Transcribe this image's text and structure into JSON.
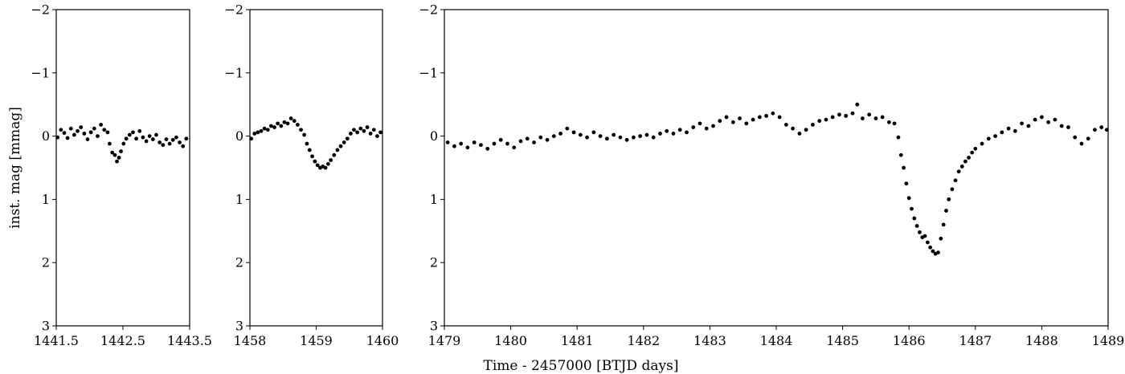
{
  "chart_data": {
    "type": "scatter",
    "ylabel": "inst. mag [mmag]",
    "xlabel": "Time - 2457000 [BTJD days]",
    "y_inverted": true,
    "ylim": [
      3,
      -2
    ],
    "grid": false,
    "legend": "none",
    "marker_color": "#000000",
    "panels": [
      {
        "xlim": [
          1441.5,
          1443.5
        ],
        "xticks": [
          "1441.5",
          "1442.5",
          "1443.5"
        ],
        "yticks": [
          "−2",
          "−1",
          "0",
          "1",
          "2",
          "3"
        ],
        "points": [
          [
            1441.52,
            0.02
          ],
          [
            1441.57,
            -0.1
          ],
          [
            1441.62,
            -0.05
          ],
          [
            1441.67,
            0.03
          ],
          [
            1441.72,
            -0.12
          ],
          [
            1441.77,
            -0.02
          ],
          [
            1441.82,
            -0.08
          ],
          [
            1441.87,
            -0.14
          ],
          [
            1441.92,
            -0.04
          ],
          [
            1441.97,
            0.05
          ],
          [
            1442.02,
            -0.06
          ],
          [
            1442.07,
            -0.12
          ],
          [
            1442.12,
            0.0
          ],
          [
            1442.17,
            -0.18
          ],
          [
            1442.22,
            -0.1
          ],
          [
            1442.27,
            -0.06
          ],
          [
            1442.3,
            0.12
          ],
          [
            1442.34,
            0.26
          ],
          [
            1442.38,
            0.3
          ],
          [
            1442.41,
            0.4
          ],
          [
            1442.44,
            0.34
          ],
          [
            1442.47,
            0.24
          ],
          [
            1442.51,
            0.12
          ],
          [
            1442.55,
            0.04
          ],
          [
            1442.6,
            -0.02
          ],
          [
            1442.65,
            -0.06
          ],
          [
            1442.7,
            0.04
          ],
          [
            1442.75,
            -0.08
          ],
          [
            1442.8,
            0.02
          ],
          [
            1442.85,
            0.08
          ],
          [
            1442.9,
            0.0
          ],
          [
            1442.95,
            0.05
          ],
          [
            1443.0,
            -0.02
          ],
          [
            1443.05,
            0.1
          ],
          [
            1443.1,
            0.14
          ],
          [
            1443.15,
            0.05
          ],
          [
            1443.2,
            0.12
          ],
          [
            1443.25,
            0.06
          ],
          [
            1443.3,
            0.02
          ],
          [
            1443.35,
            0.1
          ],
          [
            1443.4,
            0.16
          ],
          [
            1443.45,
            0.04
          ]
        ]
      },
      {
        "xlim": [
          1458,
          1460
        ],
        "xticks": [
          "1458",
          "1459",
          "1460"
        ],
        "yticks": [
          "−2",
          "−1",
          "0",
          "1",
          "2",
          "3"
        ],
        "points": [
          [
            1458.02,
            0.04
          ],
          [
            1458.07,
            -0.04
          ],
          [
            1458.12,
            -0.06
          ],
          [
            1458.17,
            -0.08
          ],
          [
            1458.22,
            -0.12
          ],
          [
            1458.27,
            -0.1
          ],
          [
            1458.32,
            -0.16
          ],
          [
            1458.37,
            -0.14
          ],
          [
            1458.42,
            -0.2
          ],
          [
            1458.47,
            -0.16
          ],
          [
            1458.52,
            -0.22
          ],
          [
            1458.57,
            -0.2
          ],
          [
            1458.62,
            -0.28
          ],
          [
            1458.67,
            -0.24
          ],
          [
            1458.72,
            -0.18
          ],
          [
            1458.77,
            -0.1
          ],
          [
            1458.82,
            -0.02
          ],
          [
            1458.86,
            0.12
          ],
          [
            1458.9,
            0.22
          ],
          [
            1458.94,
            0.32
          ],
          [
            1458.98,
            0.4
          ],
          [
            1459.02,
            0.46
          ],
          [
            1459.06,
            0.5
          ],
          [
            1459.1,
            0.48
          ],
          [
            1459.14,
            0.5
          ],
          [
            1459.18,
            0.44
          ],
          [
            1459.22,
            0.38
          ],
          [
            1459.27,
            0.3
          ],
          [
            1459.32,
            0.22
          ],
          [
            1459.37,
            0.16
          ],
          [
            1459.42,
            0.1
          ],
          [
            1459.47,
            0.04
          ],
          [
            1459.52,
            -0.04
          ],
          [
            1459.57,
            -0.1
          ],
          [
            1459.62,
            -0.06
          ],
          [
            1459.67,
            -0.12
          ],
          [
            1459.72,
            -0.08
          ],
          [
            1459.77,
            -0.14
          ],
          [
            1459.82,
            -0.04
          ],
          [
            1459.87,
            -0.1
          ],
          [
            1459.92,
            0.0
          ],
          [
            1459.97,
            -0.06
          ]
        ]
      },
      {
        "xlim": [
          1479,
          1489
        ],
        "xticks": [
          "1479",
          "1480",
          "1481",
          "1482",
          "1483",
          "1484",
          "1485",
          "1486",
          "1487",
          "1488",
          "1489"
        ],
        "yticks": [
          "−2",
          "−1",
          "0",
          "1",
          "2",
          "3"
        ],
        "points": [
          [
            1479.05,
            0.1
          ],
          [
            1479.15,
            0.16
          ],
          [
            1479.25,
            0.12
          ],
          [
            1479.35,
            0.18
          ],
          [
            1479.45,
            0.1
          ],
          [
            1479.55,
            0.14
          ],
          [
            1479.65,
            0.2
          ],
          [
            1479.75,
            0.12
          ],
          [
            1479.85,
            0.06
          ],
          [
            1479.95,
            0.12
          ],
          [
            1480.05,
            0.18
          ],
          [
            1480.15,
            0.08
          ],
          [
            1480.25,
            0.04
          ],
          [
            1480.35,
            0.1
          ],
          [
            1480.45,
            0.02
          ],
          [
            1480.55,
            0.06
          ],
          [
            1480.65,
            0.0
          ],
          [
            1480.75,
            -0.04
          ],
          [
            1480.85,
            -0.12
          ],
          [
            1480.95,
            -0.06
          ],
          [
            1481.05,
            -0.02
          ],
          [
            1481.15,
            0.02
          ],
          [
            1481.25,
            -0.06
          ],
          [
            1481.35,
            0.0
          ],
          [
            1481.45,
            0.04
          ],
          [
            1481.55,
            -0.02
          ],
          [
            1481.65,
            0.02
          ],
          [
            1481.75,
            0.06
          ],
          [
            1481.85,
            0.02
          ],
          [
            1481.95,
            0.0
          ],
          [
            1482.05,
            -0.02
          ],
          [
            1482.15,
            0.02
          ],
          [
            1482.25,
            -0.04
          ],
          [
            1482.35,
            -0.08
          ],
          [
            1482.45,
            -0.04
          ],
          [
            1482.55,
            -0.1
          ],
          [
            1482.65,
            -0.06
          ],
          [
            1482.75,
            -0.14
          ],
          [
            1482.85,
            -0.2
          ],
          [
            1482.95,
            -0.12
          ],
          [
            1483.05,
            -0.16
          ],
          [
            1483.15,
            -0.24
          ],
          [
            1483.25,
            -0.3
          ],
          [
            1483.35,
            -0.22
          ],
          [
            1483.45,
            -0.28
          ],
          [
            1483.55,
            -0.2
          ],
          [
            1483.65,
            -0.26
          ],
          [
            1483.75,
            -0.3
          ],
          [
            1483.85,
            -0.32
          ],
          [
            1483.95,
            -0.36
          ],
          [
            1484.05,
            -0.3
          ],
          [
            1484.15,
            -0.18
          ],
          [
            1484.25,
            -0.12
          ],
          [
            1484.35,
            -0.04
          ],
          [
            1484.45,
            -0.1
          ],
          [
            1484.55,
            -0.18
          ],
          [
            1484.65,
            -0.24
          ],
          [
            1484.75,
            -0.26
          ],
          [
            1484.85,
            -0.3
          ],
          [
            1484.95,
            -0.34
          ],
          [
            1485.05,
            -0.32
          ],
          [
            1485.15,
            -0.36
          ],
          [
            1485.22,
            -0.5
          ],
          [
            1485.3,
            -0.28
          ],
          [
            1485.4,
            -0.34
          ],
          [
            1485.5,
            -0.28
          ],
          [
            1485.6,
            -0.3
          ],
          [
            1485.7,
            -0.22
          ],
          [
            1485.78,
            -0.2
          ],
          [
            1485.84,
            0.02
          ],
          [
            1485.88,
            0.3
          ],
          [
            1485.92,
            0.5
          ],
          [
            1485.96,
            0.75
          ],
          [
            1486.0,
            0.98
          ],
          [
            1486.04,
            1.15
          ],
          [
            1486.08,
            1.3
          ],
          [
            1486.12,
            1.42
          ],
          [
            1486.16,
            1.52
          ],
          [
            1486.2,
            1.6
          ],
          [
            1486.24,
            1.58
          ],
          [
            1486.28,
            1.68
          ],
          [
            1486.32,
            1.76
          ],
          [
            1486.36,
            1.82
          ],
          [
            1486.4,
            1.86
          ],
          [
            1486.44,
            1.84
          ],
          [
            1486.48,
            1.62
          ],
          [
            1486.52,
            1.4
          ],
          [
            1486.56,
            1.18
          ],
          [
            1486.6,
            1.0
          ],
          [
            1486.65,
            0.84
          ],
          [
            1486.7,
            0.7
          ],
          [
            1486.75,
            0.56
          ],
          [
            1486.8,
            0.48
          ],
          [
            1486.85,
            0.4
          ],
          [
            1486.9,
            0.34
          ],
          [
            1486.95,
            0.26
          ],
          [
            1487.0,
            0.2
          ],
          [
            1487.1,
            0.12
          ],
          [
            1487.2,
            0.04
          ],
          [
            1487.3,
            0.0
          ],
          [
            1487.4,
            -0.06
          ],
          [
            1487.5,
            -0.12
          ],
          [
            1487.6,
            -0.08
          ],
          [
            1487.7,
            -0.2
          ],
          [
            1487.8,
            -0.16
          ],
          [
            1487.9,
            -0.26
          ],
          [
            1488.0,
            -0.3
          ],
          [
            1488.1,
            -0.22
          ],
          [
            1488.2,
            -0.26
          ],
          [
            1488.3,
            -0.16
          ],
          [
            1488.4,
            -0.14
          ],
          [
            1488.5,
            0.02
          ],
          [
            1488.6,
            0.12
          ],
          [
            1488.7,
            0.04
          ],
          [
            1488.8,
            -0.1
          ],
          [
            1488.9,
            -0.14
          ],
          [
            1488.98,
            -0.1
          ]
        ]
      }
    ]
  }
}
